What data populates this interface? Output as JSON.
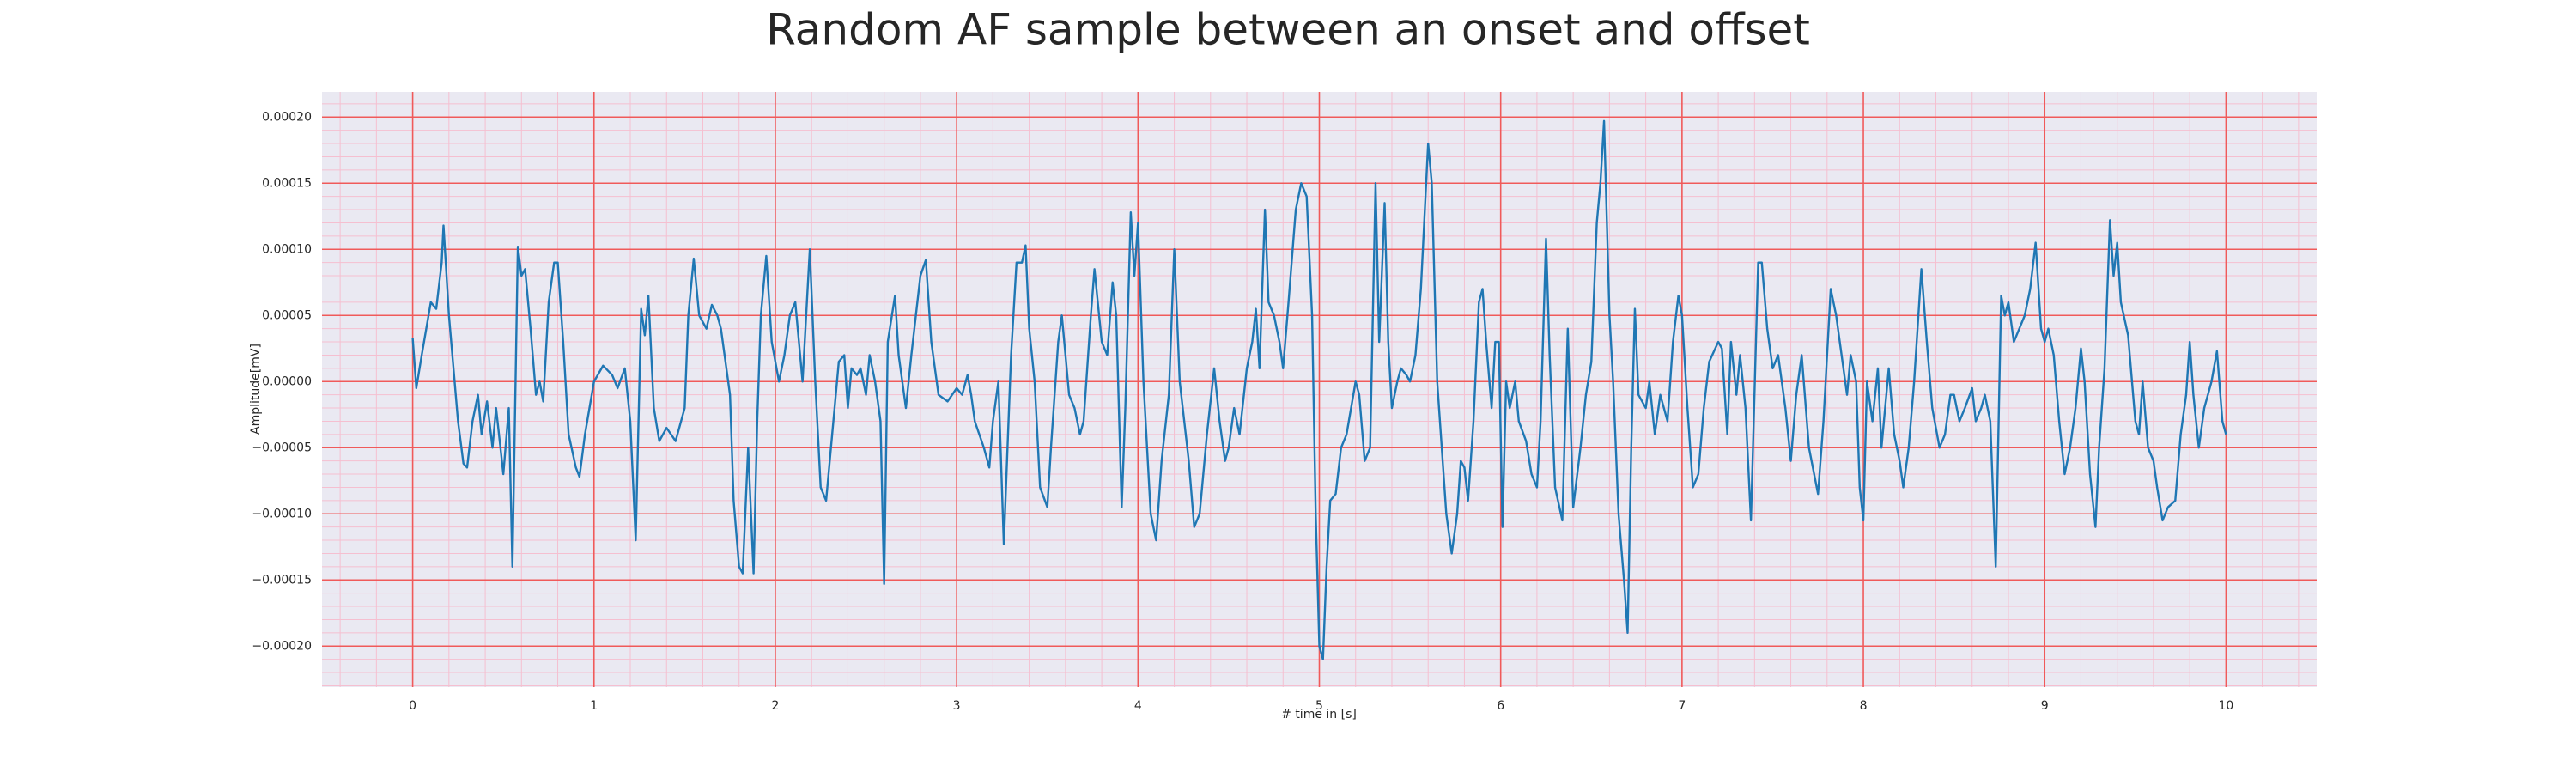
{
  "chart_data": {
    "type": "line",
    "title": "Random AF sample between an onset and offset",
    "xlabel": "# time in [s]",
    "ylabel": "Amplitude[mV]",
    "color": "#1f77b4",
    "background": "#eae9f2",
    "grid": true,
    "grid_color": "#f05a5a",
    "minor_grid": true,
    "minor_grid_color": "#f5bfd0",
    "xlim": [
      -0.5,
      10.5
    ],
    "ylim": [
      -0.000231,
      0.000219
    ],
    "xticks": [
      0,
      1,
      2,
      3,
      4,
      5,
      6,
      7,
      8,
      9,
      10
    ],
    "yticks": [
      {
        "value": 0.0002,
        "label": "0.00020"
      },
      0.00015,
      {
        "value": 0.0001,
        "label": "0.00010"
      },
      5e-05,
      {
        "value": 0,
        "label": "0.00000"
      },
      {
        "value": -5e-05,
        "label": "−0.00005"
      },
      {
        "value": -0.0001,
        "label": "−0.00010"
      },
      {
        "value": -0.00015,
        "label": "−0.00015"
      },
      {
        "value": -0.0002,
        "label": "−0.00020"
      }
    ],
    "xminorticks": [
      -0.4,
      -0.2,
      0.2,
      0.4,
      0.6,
      0.8,
      1.2,
      1.4,
      1.6,
      1.8,
      2.2,
      2.4,
      2.6,
      2.8,
      3.2,
      3.4,
      3.6,
      3.8,
      4.2,
      4.4,
      4.6,
      4.8,
      5.2,
      5.4,
      5.6,
      5.8,
      6.2,
      6.4,
      6.6,
      6.8,
      7.2,
      7.4,
      7.6,
      7.8,
      8.2,
      8.4,
      8.6,
      8.8,
      9.2,
      9.4,
      9.6,
      9.8,
      10.2,
      10.4
    ],
    "yminorticks": [
      -0.00023,
      -0.00022,
      -0.00021,
      -0.00019,
      -0.00018,
      -0.00017,
      -0.00016,
      -0.00014,
      -0.00013,
      -0.00012,
      -0.00011,
      -9e-05,
      -8e-05,
      -7e-05,
      -6e-05,
      -4e-05,
      -3e-05,
      -2e-05,
      -1e-05,
      1e-05,
      2e-05,
      3e-05,
      4e-05,
      6e-05,
      7e-05,
      8e-05,
      9e-05,
      0.00011,
      0.00012,
      0.00013,
      0.00014,
      0.00016,
      0.00017,
      0.00018,
      0.00019,
      0.00021
    ],
    "x": [
      0,
      0.02,
      0.05,
      0.1,
      0.13,
      0.16,
      0.17,
      0.2,
      0.25,
      0.28,
      0.3,
      0.33,
      0.36,
      0.38,
      0.41,
      0.44,
      0.46,
      0.5,
      0.53,
      0.55,
      0.58,
      0.6,
      0.62,
      0.65,
      0.68,
      0.7,
      0.72,
      0.75,
      0.78,
      0.8,
      0.83,
      0.86,
      0.9,
      0.92,
      0.95,
      1.0,
      1.05,
      1.1,
      1.13,
      1.17,
      1.2,
      1.23,
      1.26,
      1.28,
      1.3,
      1.33,
      1.36,
      1.4,
      1.45,
      1.5,
      1.52,
      1.55,
      1.58,
      1.62,
      1.65,
      1.68,
      1.7,
      1.75,
      1.77,
      1.8,
      1.82,
      1.85,
      1.88,
      1.9,
      1.92,
      1.95,
      1.98,
      2.02,
      2.05,
      2.08,
      2.11,
      2.15,
      2.19,
      2.22,
      2.25,
      2.28,
      2.32,
      2.35,
      2.38,
      2.4,
      2.42,
      2.45,
      2.47,
      2.5,
      2.52,
      2.55,
      2.58,
      2.6,
      2.62,
      2.66,
      2.68,
      2.72,
      2.75,
      2.8,
      2.83,
      2.86,
      2.9,
      2.95,
      3.0,
      3.03,
      3.06,
      3.08,
      3.1,
      3.15,
      3.18,
      3.2,
      3.23,
      3.26,
      3.3,
      3.33,
      3.36,
      3.38,
      3.4,
      3.43,
      3.46,
      3.5,
      3.52,
      3.56,
      3.58,
      3.62,
      3.65,
      3.68,
      3.7,
      3.74,
      3.76,
      3.8,
      3.83,
      3.86,
      3.88,
      3.91,
      3.93,
      3.96,
      3.98,
      4.0,
      4.03,
      4.07,
      4.1,
      4.13,
      4.17,
      4.2,
      4.23,
      4.28,
      4.31,
      4.34,
      4.38,
      4.42,
      4.45,
      4.48,
      4.5,
      4.53,
      4.56,
      4.6,
      4.63,
      4.65,
      4.67,
      4.7,
      4.72,
      4.75,
      4.78,
      4.8,
      4.83,
      4.87,
      4.9,
      4.93,
      4.96,
      4.98,
      5.0,
      5.02,
      5.04,
      5.06,
      5.09,
      5.12,
      5.15,
      5.2,
      5.22,
      5.25,
      5.28,
      5.31,
      5.33,
      5.36,
      5.38,
      5.4,
      5.43,
      5.45,
      5.48,
      5.5,
      5.53,
      5.56,
      5.6,
      5.62,
      5.65,
      5.7,
      5.73,
      5.76,
      5.78,
      5.8,
      5.82,
      5.85,
      5.88,
      5.9,
      5.92,
      5.95,
      5.97,
      5.99,
      6.01,
      6.03,
      6.05,
      6.08,
      6.1,
      6.14,
      6.17,
      6.2,
      6.22,
      6.25,
      6.27,
      6.3,
      6.34,
      6.37,
      6.4,
      6.44,
      6.47,
      6.5,
      6.53,
      6.55,
      6.57,
      6.6,
      6.62,
      6.65,
      6.68,
      6.7,
      6.72,
      6.74,
      6.76,
      6.8,
      6.82,
      6.85,
      6.88,
      6.9,
      6.92,
      6.95,
      6.98,
      7.0,
      7.03,
      7.06,
      7.09,
      7.12,
      7.15,
      7.2,
      7.22,
      7.25,
      7.27,
      7.3,
      7.32,
      7.35,
      7.38,
      7.42,
      7.44,
      7.47,
      7.5,
      7.53,
      7.57,
      7.6,
      7.63,
      7.66,
      7.7,
      7.75,
      7.78,
      7.82,
      7.85,
      7.88,
      7.91,
      7.93,
      7.96,
      7.98,
      8.0,
      8.02,
      8.05,
      8.08,
      8.1,
      8.14,
      8.17,
      8.2,
      8.22,
      8.25,
      8.28,
      8.32,
      8.35,
      8.38,
      8.42,
      8.45,
      8.48,
      8.5,
      8.53,
      8.56,
      8.6,
      8.62,
      8.65,
      8.67,
      8.7,
      8.73,
      8.76,
      8.78,
      8.8,
      8.83,
      8.86,
      8.89,
      8.92,
      8.95,
      8.98,
      9.0,
      9.02,
      9.05,
      9.08,
      9.11,
      9.14,
      9.17,
      9.2,
      9.22,
      9.25,
      9.28,
      9.3,
      9.33,
      9.36,
      9.38,
      9.4,
      9.42,
      9.46,
      9.5,
      9.52,
      9.54,
      9.57,
      9.6,
      9.62,
      9.65,
      9.68,
      9.72,
      9.75,
      9.78,
      9.8,
      9.82,
      9.85,
      9.88,
      9.92,
      9.95,
      9.98,
      10.0
    ],
    "values": [
      3.3e-05,
      -5e-06,
      2e-05,
      6e-05,
      5.5e-05,
      9e-05,
      0.000118,
      5e-05,
      -3e-05,
      -6.2e-05,
      -6.5e-05,
      -3e-05,
      -1e-05,
      -4e-05,
      -1.5e-05,
      -5e-05,
      -2e-05,
      -7e-05,
      -2e-05,
      -0.00014,
      0.000102,
      8e-05,
      8.5e-05,
      4e-05,
      -1e-05,
      0,
      -1.5e-05,
      6e-05,
      9e-05,
      9e-05,
      3e-05,
      -4e-05,
      -6.5e-05,
      -7.2e-05,
      -4e-05,
      0,
      1.2e-05,
      5e-06,
      -5e-06,
      1e-05,
      -3e-05,
      -0.00012,
      5.5e-05,
      3.5e-05,
      6.5e-05,
      -2e-05,
      -4.5e-05,
      -3.5e-05,
      -4.5e-05,
      -2e-05,
      5e-05,
      9.3e-05,
      5e-05,
      4e-05,
      5.8e-05,
      5e-05,
      4e-05,
      -1e-05,
      -9e-05,
      -0.00014,
      -0.000145,
      -5e-05,
      -0.000145,
      -3e-05,
      5e-05,
      9.5e-05,
      3e-05,
      0,
      2e-05,
      5e-05,
      6e-05,
      0,
      0.0001,
      0,
      -8e-05,
      -9e-05,
      -3e-05,
      1.5e-05,
      2e-05,
      -2e-05,
      1e-05,
      5e-06,
      1e-05,
      -1e-05,
      2e-05,
      0,
      -3e-05,
      -0.000153,
      3e-05,
      6.5e-05,
      2e-05,
      -2e-05,
      2e-05,
      8e-05,
      9.2e-05,
      3e-05,
      -1e-05,
      -1.5e-05,
      -5e-06,
      -1e-05,
      5e-06,
      -1e-05,
      -3e-05,
      -5e-05,
      -6.5e-05,
      -3e-05,
      0,
      -0.000123,
      2e-05,
      9e-05,
      9e-05,
      0.000103,
      4e-05,
      0,
      -8e-05,
      -9.5e-05,
      -5e-05,
      3e-05,
      5e-05,
      -1e-05,
      -2e-05,
      -4e-05,
      -3e-05,
      5e-05,
      8.5e-05,
      3e-05,
      2e-05,
      7.5e-05,
      5e-05,
      -9.5e-05,
      -2e-05,
      0.000128,
      8e-05,
      0.00012,
      0,
      -0.0001,
      -0.00012,
      -6e-05,
      -1e-05,
      0.0001,
      0,
      -6e-05,
      -0.00011,
      -0.0001,
      -4e-05,
      1e-05,
      -3e-05,
      -6e-05,
      -5e-05,
      -2e-05,
      -4e-05,
      1e-05,
      3e-05,
      5.5e-05,
      1e-05,
      0.00013,
      6e-05,
      5e-05,
      3e-05,
      1e-05,
      6e-05,
      0.00013,
      0.00015,
      0.00014,
      5e-05,
      -0.0001,
      -0.0002,
      -0.00021,
      -0.00014,
      -9e-05,
      -8.5e-05,
      -5e-05,
      -4e-05,
      0,
      -1e-05,
      -6e-05,
      -5e-05,
      0.00015,
      3e-05,
      0.000135,
      3e-05,
      -2e-05,
      0,
      1e-05,
      5e-06,
      0,
      2e-05,
      7e-05,
      0.00018,
      0.00015,
      0,
      -0.0001,
      -0.00013,
      -0.0001,
      -6e-05,
      -6.5e-05,
      -9e-05,
      -3e-05,
      6e-05,
      7e-05,
      3e-05,
      -2e-05,
      3e-05,
      3e-05,
      -0.00011,
      0,
      -2e-05,
      0,
      -3e-05,
      -4.5e-05,
      -7e-05,
      -8e-05,
      -3e-05,
      0.000108,
      2e-05,
      -8e-05,
      -0.000105,
      4e-05,
      -9.5e-05,
      -5e-05,
      -1e-05,
      1.5e-05,
      0.00012,
      0.00015,
      0.000197,
      5e-05,
      0,
      -0.0001,
      -0.00015,
      -0.00019,
      -5e-05,
      5.5e-05,
      -1e-05,
      -2e-05,
      0,
      -4e-05,
      -1e-05,
      -2e-05,
      -3e-05,
      3e-05,
      6.5e-05,
      5e-05,
      -2e-05,
      -8e-05,
      -7e-05,
      -2e-05,
      1.5e-05,
      3e-05,
      2.5e-05,
      -4e-05,
      3e-05,
      -1e-05,
      2e-05,
      -2e-05,
      -0.000105,
      9e-05,
      9e-05,
      4e-05,
      1e-05,
      2e-05,
      -2e-05,
      -6e-05,
      -1e-05,
      2e-05,
      -5e-05,
      -8.5e-05,
      -3e-05,
      7e-05,
      5e-05,
      2e-05,
      -1e-05,
      2e-05,
      0,
      -8e-05,
      -0.000105,
      0,
      -3e-05,
      1e-05,
      -5e-05,
      1e-05,
      -4e-05,
      -6e-05,
      -8e-05,
      -5e-05,
      0,
      8.5e-05,
      3e-05,
      -2e-05,
      -5e-05,
      -4e-05,
      -1e-05,
      -1e-05,
      -3e-05,
      -2e-05,
      -5e-06,
      -3e-05,
      -2e-05,
      -1e-05,
      -3e-05,
      -0.00014,
      6.5e-05,
      5e-05,
      6e-05,
      3e-05,
      4e-05,
      5e-05,
      7e-05,
      0.000105,
      4e-05,
      3e-05,
      4e-05,
      2e-05,
      -3e-05,
      -7e-05,
      -5e-05,
      -2e-05,
      2.5e-05,
      0,
      -7e-05,
      -0.00011,
      -5e-05,
      1e-05,
      0.000122,
      8e-05,
      0.000105,
      6e-05,
      3.5e-05,
      -3e-05,
      -4e-05,
      0,
      -5e-05,
      -6e-05,
      -8e-05,
      -0.000105,
      -9.5e-05,
      -9e-05,
      -4e-05,
      -1e-05,
      3e-05,
      -1e-05,
      -5e-05,
      -2e-05,
      0,
      2.3e-05,
      -3e-05,
      -4e-05
    ]
  }
}
